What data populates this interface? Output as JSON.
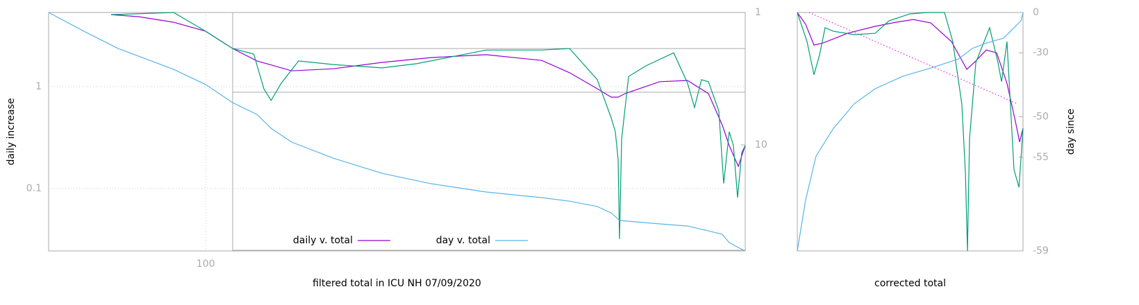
{
  "chart_data": [
    {
      "type": "line",
      "xlabel": "filtered total in ICU NH 07/09/2020",
      "ylabel": "daily increase",
      "xscale": "log",
      "xlim": [
        27.2,
        8760
      ],
      "xticks": [
        100
      ],
      "yscale": "log",
      "ylim": [
        0.0244,
        5.35
      ],
      "yticks": [
        0.1,
        1
      ],
      "y2scale": "log",
      "y2lim": [
        63.2,
        1
      ],
      "y2ticks": [
        1,
        10
      ],
      "grid": true,
      "series": [
        {
          "name": "daily v. total",
          "color": "#9400d3",
          "x": [
            45.7,
            57.5,
            76.7,
            100,
            125,
            153,
            204,
            288,
            432,
            646,
            1023,
            1622,
            2042,
            2570,
            2884,
            3055,
            3236,
            4315,
            5433,
            6457,
            7244,
            7674,
            8272,
            8760
          ],
          "values": [
            5.1,
            4.86,
            4.29,
            3.5,
            2.37,
            1.79,
            1.43,
            1.5,
            1.73,
            1.93,
            2.06,
            1.81,
            1.37,
            0.954,
            0.79,
            0.79,
            0.855,
            1.12,
            1.15,
            0.855,
            0.42,
            0.264,
            0.165,
            0.264
          ]
        },
        {
          "color": "#009e73",
          "x": [
            45.7,
            76.7,
            100,
            125,
            149,
            162,
            172,
            187,
            216,
            288,
            432,
            575,
            1023,
            1622,
            2042,
            2570,
            2884,
            2985,
            3055,
            3090,
            3145,
            3331,
            3846,
            4842,
            5433,
            5754,
            6095,
            6457,
            7039,
            7328,
            7674,
            7943,
            8222,
            8511,
            8760
          ],
          "values": [
            5.1,
            5.35,
            3.5,
            2.37,
            2.09,
            0.954,
            0.731,
            1.08,
            1.79,
            1.65,
            1.53,
            1.68,
            2.29,
            2.29,
            2.37,
            1.17,
            0.494,
            0.361,
            0.193,
            0.0319,
            0.309,
            1.26,
            1.6,
            2.15,
            1.08,
            0.625,
            1.17,
            1.12,
            0.578,
            0.112,
            0.361,
            0.264,
            0.0816,
            0.226,
            0.264
          ]
        },
        {
          "name": "day v. total",
          "color": "#56b4e9",
          "axis": "y2",
          "x": [
            27.2,
            36.3,
            48.4,
            76.7,
            100,
            125,
            153,
            172,
            204,
            288,
            432,
            646,
            1023,
            1622,
            2042,
            2570,
            2884,
            3090,
            4315,
            5433,
            6457,
            7244,
            7674,
            8272,
            8760
          ],
          "values": [
            1.0,
            1.38,
            1.87,
            2.69,
            3.5,
            4.8,
            5.89,
            7.49,
            9.53,
            12.6,
            16.4,
            19.6,
            22.7,
            25.0,
            26.6,
            29.2,
            32.6,
            37.2,
            39.5,
            41.0,
            44.6,
            47.3,
            54.7,
            59.6,
            63.2
          ]
        }
      ]
    },
    {
      "type": "line",
      "xlabel": "corrected total",
      "y2label": "day since",
      "xlim": [
        0,
        100
      ],
      "yscale": "log",
      "ylim": [
        0.0244,
        5.35
      ],
      "y2scale": "log-offset",
      "y2lim": [
        -59,
        0
      ],
      "y2ticks": [
        0,
        -30,
        -50,
        -55,
        -59
      ],
      "series": [
        {
          "color": "#9400d3",
          "x": [
            0,
            3.7,
            7.4,
            11.4,
            22.2,
            34.5,
            43.7,
            51.4,
            59.1,
            68.3,
            75.1,
            79.1,
            83.7,
            88.3,
            92.9,
            96.6,
            98.5,
            100
          ],
          "values": [
            5.35,
            4.1,
            2.56,
            2.68,
            3.34,
            3.91,
            4.29,
            4.57,
            4.23,
            2.77,
            1.48,
            1.79,
            2.29,
            2.15,
            1.08,
            0.457,
            0.286,
            0.391
          ]
        },
        {
          "color": "#009e73",
          "x": [
            0,
            4.3,
            7.4,
            9.8,
            12.3,
            16.0,
            25.2,
            34.5,
            40.6,
            49.8,
            57.5,
            65.2,
            68.9,
            72.9,
            74.5,
            75.4,
            76.3,
            79.1,
            85.2,
            88.9,
            90.5,
            92.9,
            96.0,
            98.2,
            100
          ],
          "values": [
            5.35,
            2.77,
            1.31,
            2.02,
            3.79,
            3.5,
            3.24,
            3.34,
            4.43,
            5.18,
            5.35,
            5.35,
            2.77,
            0.676,
            0.141,
            0.0244,
            0.309,
            1.73,
            3.79,
            1.73,
            1.12,
            2.77,
            0.153,
            0.103,
            0.391
          ]
        },
        {
          "color": "#56b4e9",
          "axis": "y2",
          "x": [
            0,
            3.7,
            8.3,
            16.0,
            25.2,
            34.5,
            46.8,
            59.1,
            71.4,
            77.5,
            83.7,
            91.4,
            96.0,
            99.1,
            100
          ],
          "values": [
            -59,
            -57.6,
            -54.9,
            -51.8,
            -47.5,
            -43.8,
            -39.9,
            -36.9,
            -33.0,
            -27.7,
            -24.5,
            -21.4,
            -13.9,
            -8.0,
            0
          ]
        },
        {
          "color": "#e51ee5",
          "axis": "y2",
          "dash": true,
          "x": [
            5.2,
            97.5
          ],
          "values": [
            0,
            -47.5
          ]
        }
      ]
    }
  ]
}
